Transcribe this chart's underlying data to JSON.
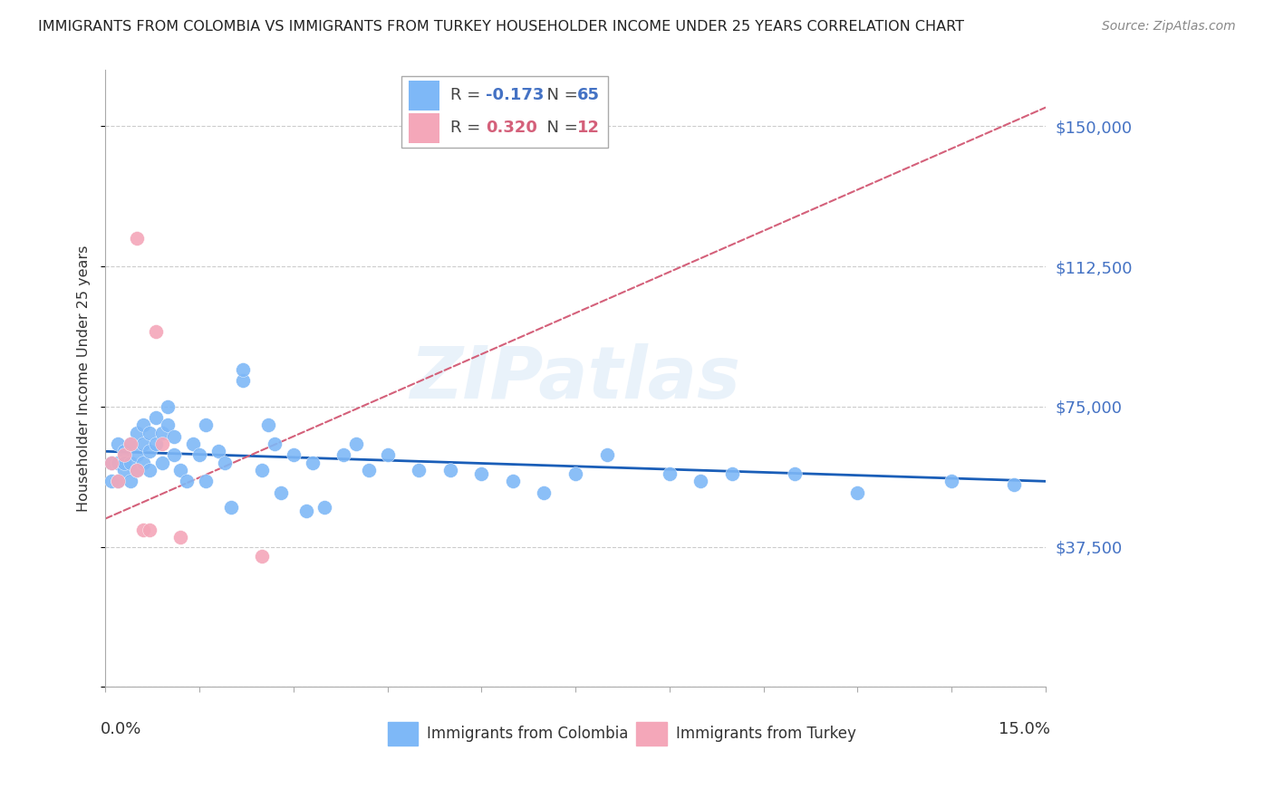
{
  "title": "IMMIGRANTS FROM COLOMBIA VS IMMIGRANTS FROM TURKEY HOUSEHOLDER INCOME UNDER 25 YEARS CORRELATION CHART",
  "source": "Source: ZipAtlas.com",
  "ylabel": "Householder Income Under 25 years",
  "xlim": [
    0.0,
    0.15
  ],
  "ylim": [
    0,
    165000
  ],
  "yticks": [
    0,
    37500,
    75000,
    112500,
    150000
  ],
  "ytick_labels": [
    "",
    "$37,500",
    "$75,000",
    "$112,500",
    "$150,000"
  ],
  "colombia_color": "#7eb8f7",
  "turkey_color": "#f4a7b9",
  "colombia_line_color": "#1a5eb8",
  "turkey_line_color": "#d4607a",
  "R_colombia": -0.173,
  "N_colombia": 65,
  "R_turkey": 0.32,
  "N_turkey": 12,
  "colombia_x": [
    0.001,
    0.001,
    0.002,
    0.002,
    0.002,
    0.003,
    0.003,
    0.003,
    0.004,
    0.004,
    0.004,
    0.005,
    0.005,
    0.005,
    0.006,
    0.006,
    0.006,
    0.007,
    0.007,
    0.007,
    0.008,
    0.008,
    0.009,
    0.009,
    0.01,
    0.01,
    0.011,
    0.011,
    0.012,
    0.013,
    0.014,
    0.015,
    0.016,
    0.016,
    0.018,
    0.019,
    0.02,
    0.022,
    0.022,
    0.025,
    0.026,
    0.027,
    0.028,
    0.03,
    0.032,
    0.033,
    0.035,
    0.038,
    0.04,
    0.042,
    0.045,
    0.05,
    0.055,
    0.06,
    0.065,
    0.07,
    0.075,
    0.08,
    0.09,
    0.095,
    0.1,
    0.11,
    0.12,
    0.135,
    0.145
  ],
  "colombia_y": [
    60000,
    55000,
    65000,
    60000,
    55000,
    63000,
    58000,
    60000,
    65000,
    60000,
    55000,
    68000,
    62000,
    58000,
    70000,
    65000,
    60000,
    68000,
    63000,
    58000,
    72000,
    65000,
    68000,
    60000,
    75000,
    70000,
    67000,
    62000,
    58000,
    55000,
    65000,
    62000,
    70000,
    55000,
    63000,
    60000,
    48000,
    82000,
    85000,
    58000,
    70000,
    65000,
    52000,
    62000,
    47000,
    60000,
    48000,
    62000,
    65000,
    58000,
    62000,
    58000,
    58000,
    57000,
    55000,
    52000,
    57000,
    62000,
    57000,
    55000,
    57000,
    57000,
    52000,
    55000,
    54000
  ],
  "turkey_x": [
    0.001,
    0.002,
    0.003,
    0.004,
    0.005,
    0.005,
    0.006,
    0.007,
    0.008,
    0.009,
    0.012,
    0.025
  ],
  "turkey_y": [
    60000,
    55000,
    62000,
    65000,
    120000,
    58000,
    42000,
    42000,
    95000,
    65000,
    40000,
    35000
  ]
}
